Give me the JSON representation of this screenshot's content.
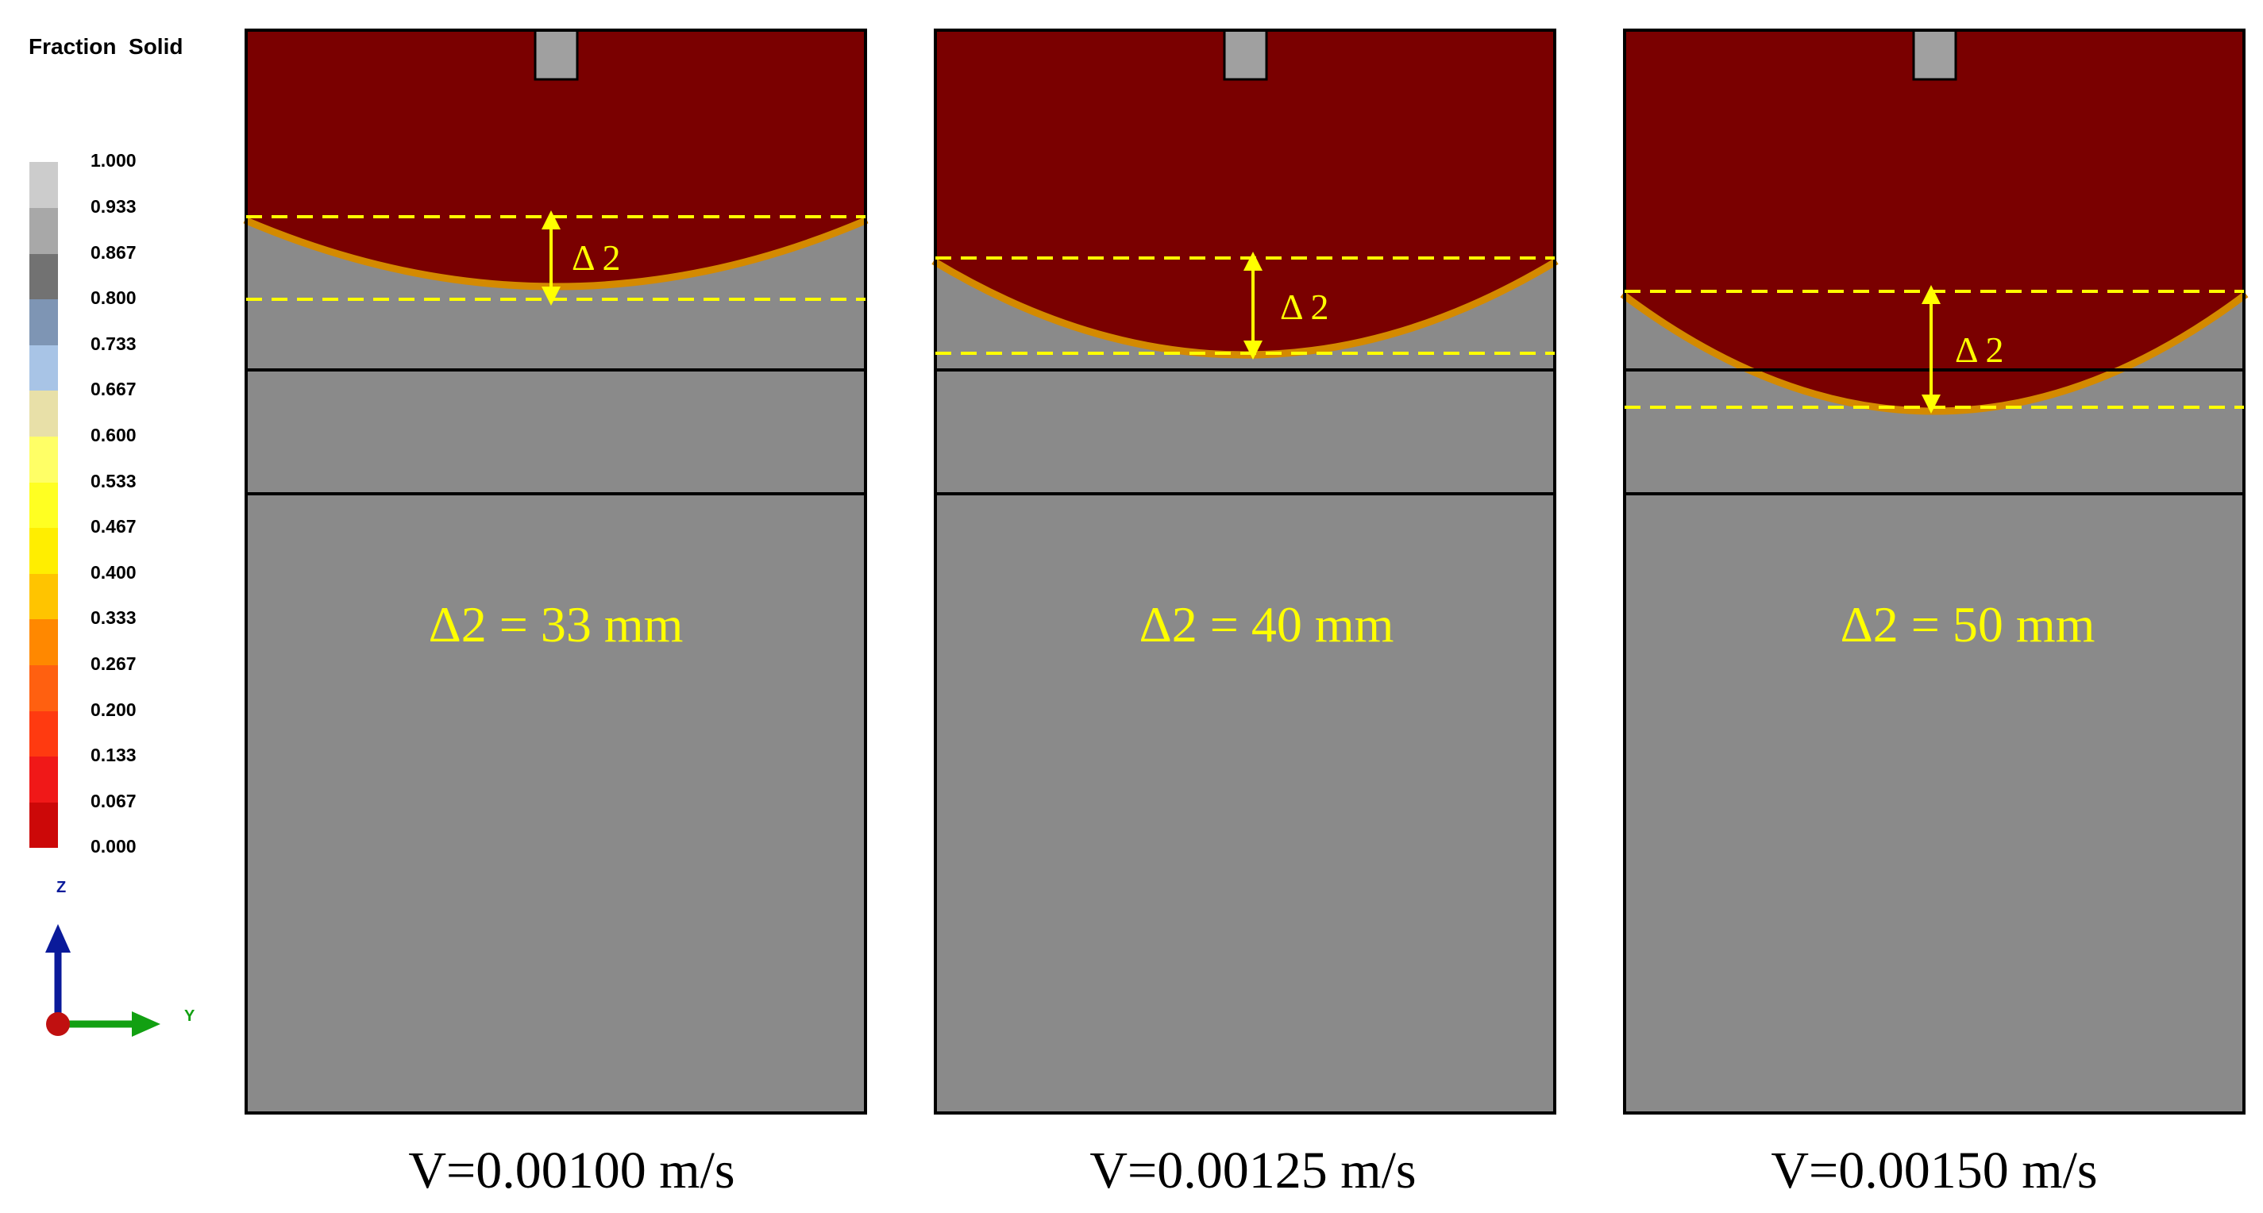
{
  "legend": {
    "title": "Fraction  Solid",
    "ticks": [
      "1.000",
      "0.933",
      "0.867",
      "0.800",
      "0.733",
      "0.667",
      "0.600",
      "0.533",
      "0.467",
      "0.400",
      "0.333",
      "0.267",
      "0.200",
      "0.133",
      "0.067",
      "0.000"
    ],
    "colors": [
      "#cccccc",
      "#a8a8a8",
      "#727272",
      "#7e95b4",
      "#a8c4e6",
      "#e8e0a8",
      "#ffff66",
      "#ffff22",
      "#ffee00",
      "#ffc400",
      "#ff8800",
      "#ff6010",
      "#ff3a10",
      "#f01818",
      "#cc0808",
      "#a80000"
    ]
  },
  "triad": {
    "z_label": "Z",
    "y_label": "Y",
    "z_color": "#0a1a9a",
    "y_color": "#12a012",
    "x_color": "#c01010"
  },
  "colors": {
    "liquid": "#7a0000",
    "solid": "#8a8a8a",
    "mushy": "#d48a00",
    "nozzle": "#a0a0a0",
    "marker": "#ffff00"
  },
  "panels": [
    {
      "delta_label": "Δ 2",
      "delta_value": "Δ2 = 33 mm",
      "speed": "V=0.00100 m/s"
    },
    {
      "delta_label": "Δ 2",
      "delta_value": "Δ2 = 40 mm",
      "speed": "V=0.00125 m/s"
    },
    {
      "delta_label": "Δ 2",
      "delta_value": "Δ2 = 50 mm",
      "speed": "V=0.00150 m/s"
    }
  ]
}
